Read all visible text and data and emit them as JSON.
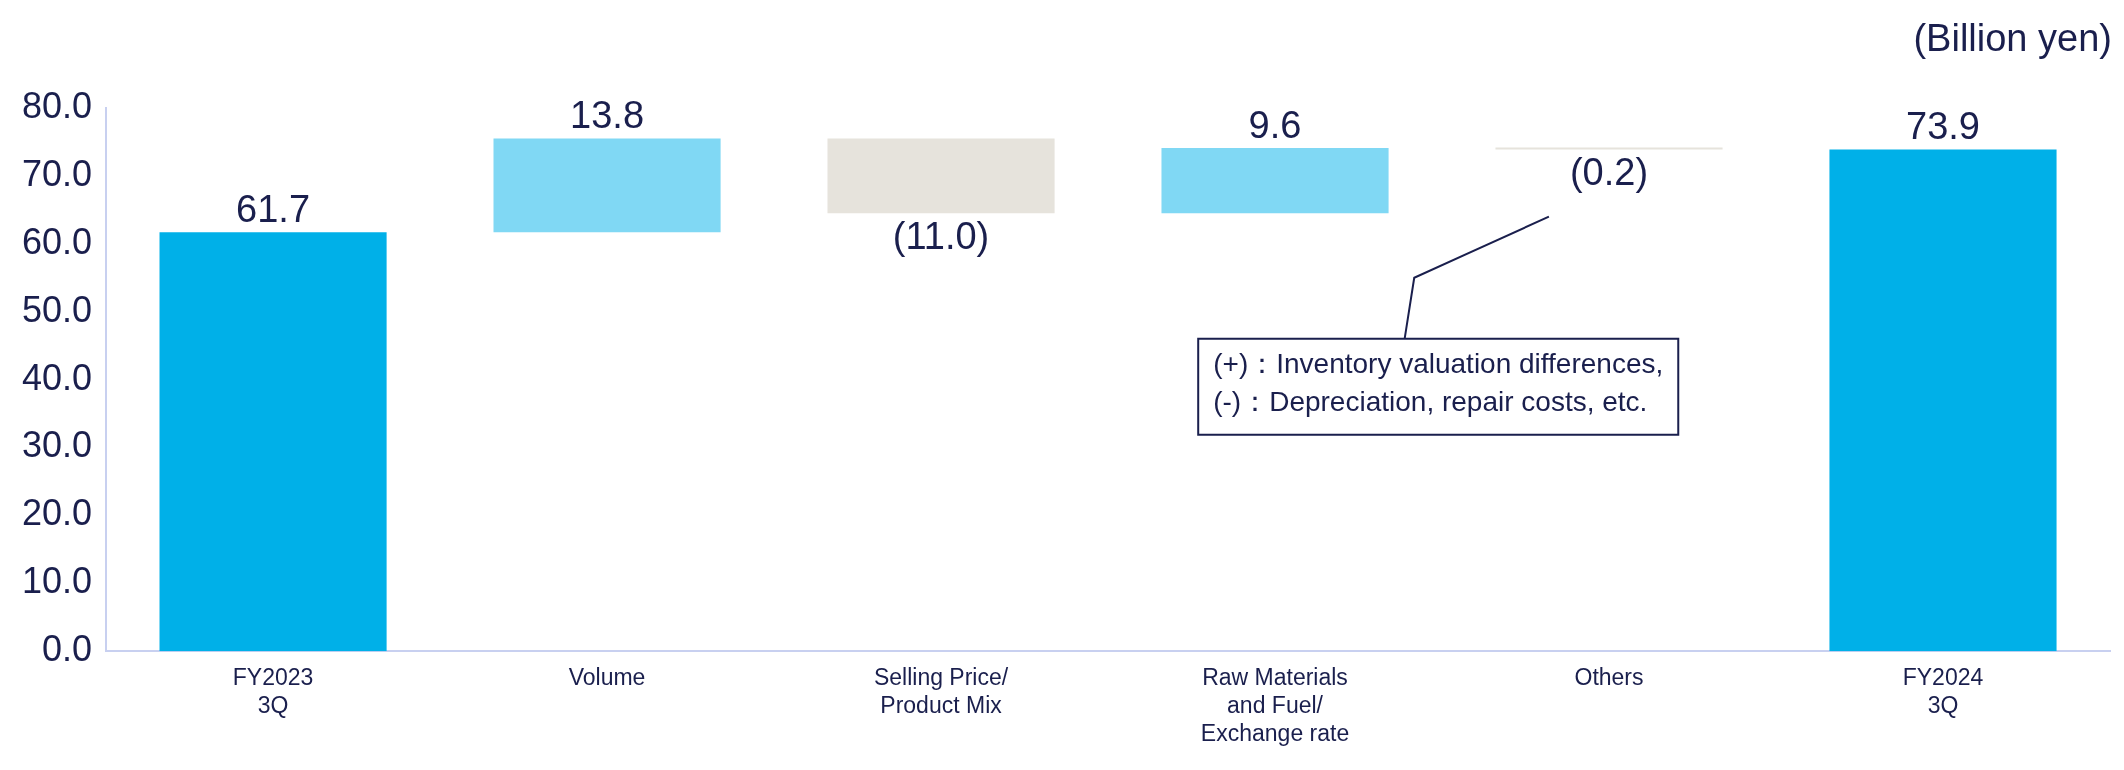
{
  "chart_data": {
    "type": "bar",
    "categories": [
      "FY2023\n3Q",
      "Volume",
      "Selling Price/\nProduct Mix",
      "Raw Materials\nand Fuel/\nExchange rate",
      "Others",
      "FY2024\n3Q"
    ],
    "values": [
      61.7,
      13.8,
      -11.0,
      9.6,
      -0.2,
      73.9
    ],
    "base": [
      0,
      61.7,
      75.5,
      64.5,
      74.1,
      0
    ],
    "colors": [
      "#00b0e8",
      "#80d8f4",
      "#e6e3dc",
      "#80d8f4",
      "#e6e3dc",
      "#00b0e8"
    ],
    "value_labels": [
      "61.7",
      "13.8",
      "(11.0)",
      "9.6",
      "(0.2)",
      "73.9"
    ],
    "ylim": [
      0,
      80
    ],
    "yticks": [
      {
        "value": 0,
        "label": "0.0"
      },
      {
        "value": 10,
        "label": "10.0"
      },
      {
        "value": 20,
        "label": "20.0"
      },
      {
        "value": 30,
        "label": "30.0"
      },
      {
        "value": 40,
        "label": "40.0"
      },
      {
        "value": 50,
        "label": "50.0"
      },
      {
        "value": 60,
        "label": "60.0"
      },
      {
        "value": 70,
        "label": "70.0"
      },
      {
        "value": 80,
        "label": "80.0"
      }
    ],
    "grid": false,
    "legend": false,
    "annotations": [
      "(Billion yen)",
      "(+)：Inventory valuation differences,\n(-)：Depreciation, repair costs, etc."
    ]
  }
}
